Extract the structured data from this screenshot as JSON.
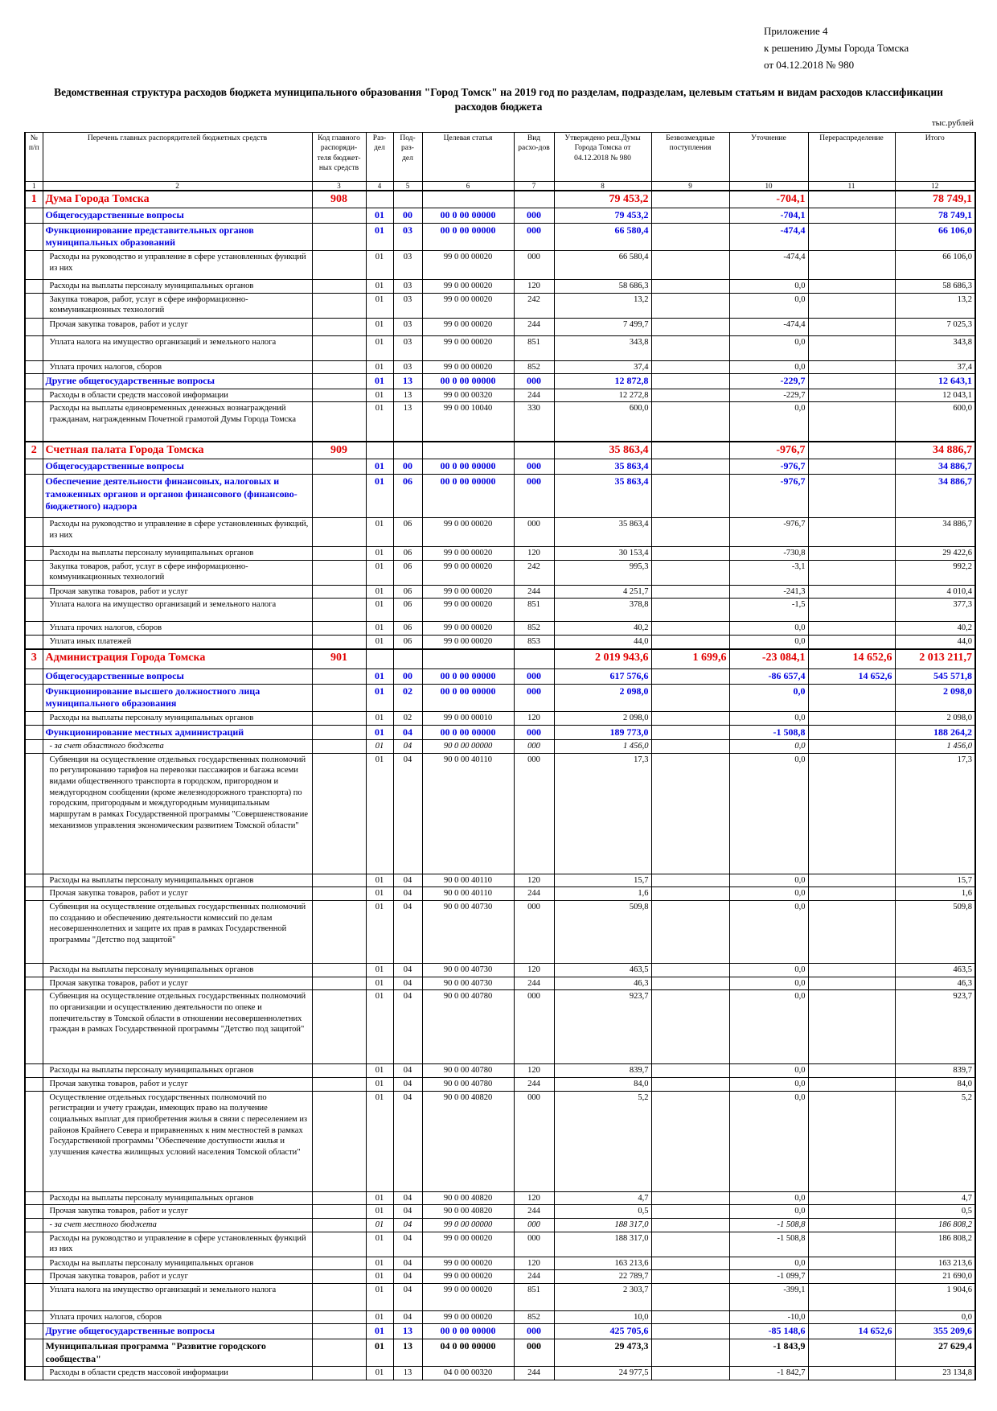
{
  "header": {
    "lines": [
      "Приложение 4",
      "к решению Думы Города Томска",
      "от 04.12.2018 № 980"
    ]
  },
  "title": "Ведомственная структура расходов бюджета муниципального образования \"Город Томск\" на 2019 год по разделам, подразделам, целевым статьям и видам расходов классификации расходов бюджета",
  "unit": "тыс.рублей",
  "table": {
    "columns": [
      "№ п/п",
      "Перечень главных распорядителей бюджетных средств",
      "Код главного распоряди-теля бюджет-ных средств",
      "Раз-дел",
      "Под-раз-дел",
      "Целевая статья",
      "Вид расхо-дов",
      "Утверждено реш.Думы Города Томска от 04.12.2018 № 980",
      "Безвозмездные поступления",
      "Уточнение",
      "Перераспределение",
      "Итого"
    ],
    "column_numbers": [
      1,
      2,
      3,
      4,
      5,
      6,
      7,
      8,
      9,
      10,
      11,
      12
    ],
    "rows": [
      [
        "1",
        "Дума Города Томска",
        "908",
        "",
        "",
        "",
        "",
        "79 453,2",
        "",
        "-704,1",
        "",
        "78 749,1"
      ],
      [
        "",
        "Общегосударственные вопросы",
        "",
        "01",
        "00",
        "00 0 00 00000",
        "000",
        "79 453,2",
        "",
        "-704,1",
        "",
        "78 749,1"
      ],
      [
        "",
        "Функционирование представительных органов муниципальных образований",
        "",
        "01",
        "03",
        "00 0 00 00000",
        "000",
        "66 580,4",
        "",
        "-474,4",
        "",
        "66 106,0"
      ],
      [
        "",
        "Расходы на руководство и управление в сфере установленных функций из них",
        "",
        "01",
        "03",
        "99 0 00 00020",
        "000",
        "66 580,4",
        "",
        "-474,4",
        "",
        "66 106,0"
      ],
      [
        "",
        "Расходы на выплаты персоналу муниципальных органов",
        "",
        "01",
        "03",
        "99 0 00 00020",
        "120",
        "58 686,3",
        "",
        "0,0",
        "",
        "58 686,3"
      ],
      [
        "",
        "Закупка товаров, работ, услуг в сфере информационно-коммуникационных технологий",
        "",
        "01",
        "03",
        "99 0 00 00020",
        "242",
        "13,2",
        "",
        "0,0",
        "",
        "13,2"
      ],
      [
        "",
        "Прочая закупка товаров, работ и услуг",
        "",
        "01",
        "03",
        "99 0 00 00020",
        "244",
        "7 499,7",
        "",
        "-474,4",
        "",
        "7 025,3"
      ],
      [
        "",
        "Уплата налога на имущество организаций и земельного налога",
        "",
        "01",
        "03",
        "99 0 00 00020",
        "851",
        "343,8",
        "",
        "0,0",
        "",
        "343,8"
      ],
      [
        "",
        "Уплата прочих налогов, сборов",
        "",
        "01",
        "03",
        "99 0 00 00020",
        "852",
        "37,4",
        "",
        "0,0",
        "",
        "37,4"
      ],
      [
        "",
        "Другие общегосударственные вопросы",
        "",
        "01",
        "13",
        "00 0 00 00000",
        "000",
        "12 872,8",
        "",
        "-229,7",
        "",
        "12 643,1"
      ],
      [
        "",
        "Расходы в области средств массовой информации",
        "",
        "01",
        "13",
        "99 0 00 00320",
        "244",
        "12 272,8",
        "",
        "-229,7",
        "",
        "12 043,1"
      ],
      [
        "",
        "Расходы на выплаты единовременных денежных вознаграждений гражданам, награжденным Почетной грамотой Думы Города Томска",
        "",
        "01",
        "13",
        "99 0 00 10040",
        "330",
        "600,0",
        "",
        "0,0",
        "",
        "600,0"
      ],
      [
        "2",
        "Счетная палата Города Томска",
        "909",
        "",
        "",
        "",
        "",
        "35 863,4",
        "",
        "-976,7",
        "",
        "34 886,7"
      ],
      [
        "",
        "Общегосударственные вопросы",
        "",
        "01",
        "00",
        "00 0 00 00000",
        "000",
        "35 863,4",
        "",
        "-976,7",
        "",
        "34 886,7"
      ],
      [
        "",
        "Обеспечение деятельности финансовых, налоговых и таможенных органов и органов финансового (финансово-бюджетного) надзора",
        "",
        "01",
        "06",
        "00 0 00 00000",
        "000",
        "35 863,4",
        "",
        "-976,7",
        "",
        "34 886,7"
      ],
      [
        "",
        "Расходы на руководство и управление в сфере установленных функций, из них",
        "",
        "01",
        "06",
        "99 0 00 00020",
        "000",
        "35 863,4",
        "",
        "-976,7",
        "",
        "34 886,7"
      ],
      [
        "",
        "Расходы на выплаты персоналу муниципальных органов",
        "",
        "01",
        "06",
        "99 0 00 00020",
        "120",
        "30 153,4",
        "",
        "-730,8",
        "",
        "29 422,6"
      ],
      [
        "",
        "Закупка товаров, работ, услуг в сфере информационно-коммуникационных технологий",
        "",
        "01",
        "06",
        "99 0 00 00020",
        "242",
        "995,3",
        "",
        "-3,1",
        "",
        "992,2"
      ],
      [
        "",
        "Прочая закупка товаров, работ и услуг",
        "",
        "01",
        "06",
        "99 0 00 00020",
        "244",
        "4 251,7",
        "",
        "-241,3",
        "",
        "4 010,4"
      ],
      [
        "",
        "Уплата налога на имущество организаций и земельного налога",
        "",
        "01",
        "06",
        "99 0 00 00020",
        "851",
        "378,8",
        "",
        "-1,5",
        "",
        "377,3"
      ],
      [
        "",
        "Уплата прочих налогов, сборов",
        "",
        "01",
        "06",
        "99 0 00 00020",
        "852",
        "40,2",
        "",
        "0,0",
        "",
        "40,2"
      ],
      [
        "",
        "Уплата иных платежей",
        "",
        "01",
        "06",
        "99 0 00 00020",
        "853",
        "44,0",
        "",
        "0,0",
        "",
        "44,0"
      ],
      [
        "3",
        "Администрация Города Томска",
        "901",
        "",
        "",
        "",
        "",
        "2 019 943,6",
        "1 699,6",
        "-23 084,1",
        "14 652,6",
        "2 013 211,7"
      ],
      [
        "",
        "Общегосударственные вопросы",
        "",
        "01",
        "00",
        "00 0 00 00000",
        "000",
        "617 576,6",
        "",
        "-86 657,4",
        "14 652,6",
        "545 571,8"
      ],
      [
        "",
        "Функционирование высшего должностного лица муниципального образования",
        "",
        "01",
        "02",
        "00 0 00 00000",
        "000",
        "2 098,0",
        "",
        "0,0",
        "",
        "2 098,0"
      ],
      [
        "",
        "Расходы на выплаты персоналу муниципальных органов",
        "",
        "01",
        "02",
        "99 0 00 00010",
        "120",
        "2 098,0",
        "",
        "0,0",
        "",
        "2 098,0"
      ],
      [
        "",
        "Функционирование местных администраций",
        "",
        "01",
        "04",
        "00 0 00 00000",
        "000",
        "189 773,0",
        "",
        "-1 508,8",
        "",
        "188 264,2"
      ],
      [
        "",
        "- за счет областного бюджета",
        "",
        "01",
        "04",
        "90 0 00 00000",
        "000",
        "1 456,0",
        "",
        "0,0",
        "",
        "1 456,0"
      ],
      [
        "",
        "Субвенция на осуществление отдельных государственных полномочий по регулированию тарифов на перевозки пассажиров и багажа всеми видами общественного транспорта в городском, пригородном и междугородном сообщении (кроме железнодорожного транспорта) по городским, пригородным и междугородным муниципальным маршрутам в рамках Государственной программы \"Совершенствование механизмов управления экономическим развитием Томской области\"",
        "",
        "01",
        "04",
        "90 0 00 40110",
        "000",
        "17,3",
        "",
        "0,0",
        "",
        "17,3"
      ],
      [
        "",
        "Расходы на выплаты персоналу муниципальных органов",
        "",
        "01",
        "04",
        "90 0 00 40110",
        "120",
        "15,7",
        "",
        "0,0",
        "",
        "15,7"
      ],
      [
        "",
        "Прочая закупка товаров, работ и услуг",
        "",
        "01",
        "04",
        "90 0 00 40110",
        "244",
        "1,6",
        "",
        "0,0",
        "",
        "1,6"
      ],
      [
        "",
        "Субвенция на осуществление отдельных государственных полномочий по созданию и обеспечению деятельности комиссий по делам несовершеннолетних и защите их прав в рамках Государственной программы \"Детство под защитой\"",
        "",
        "01",
        "04",
        "90 0 00 40730",
        "000",
        "509,8",
        "",
        "0,0",
        "",
        "509,8"
      ],
      [
        "",
        "Расходы на выплаты персоналу муниципальных органов",
        "",
        "01",
        "04",
        "90 0 00 40730",
        "120",
        "463,5",
        "",
        "0,0",
        "",
        "463,5"
      ],
      [
        "",
        "Прочая закупка товаров, работ и услуг",
        "",
        "01",
        "04",
        "90 0 00 40730",
        "244",
        "46,3",
        "",
        "0,0",
        "",
        "46,3"
      ],
      [
        "",
        "Субвенция на осуществление отдельных государственных полномочий по организации и осуществлению деятельности по опеке и попечительству в Томской области в отношении несовершеннолетних граждан в рамках Государственной программы \"Детство под защитой\"",
        "",
        "01",
        "04",
        "90 0 00 40780",
        "000",
        "923,7",
        "",
        "0,0",
        "",
        "923,7"
      ],
      [
        "",
        "Расходы на выплаты персоналу муниципальных органов",
        "",
        "01",
        "04",
        "90 0 00 40780",
        "120",
        "839,7",
        "",
        "0,0",
        "",
        "839,7"
      ],
      [
        "",
        "Прочая закупка товаров, работ и услуг",
        "",
        "01",
        "04",
        "90 0 00 40780",
        "244",
        "84,0",
        "",
        "0,0",
        "",
        "84,0"
      ],
      [
        "",
        "Осуществление отдельных государственных полномочий по регистрации и учету граждан, имеющих право на получение социальных выплат для приобретения жилья в связи с переселением из районов Крайнего Севера и приравненных к ним местностей в рамках Государственной программы \"Обеспечение доступности жилья и улучшения качества жилищных условий населения Томской области\"",
        "",
        "01",
        "04",
        "90 0 00 40820",
        "000",
        "5,2",
        "",
        "0,0",
        "",
        "5,2"
      ],
      [
        "",
        "Расходы на выплаты персоналу муниципальных органов",
        "",
        "01",
        "04",
        "90 0 00 40820",
        "120",
        "4,7",
        "",
        "0,0",
        "",
        "4,7"
      ],
      [
        "",
        "Прочая закупка товаров, работ и услуг",
        "",
        "01",
        "04",
        "90 0 00 40820",
        "244",
        "0,5",
        "",
        "0,0",
        "",
        "0,5"
      ],
      [
        "",
        "- за счет местного бюджета",
        "",
        "01",
        "04",
        "99 0 00 00000",
        "000",
        "188 317,0",
        "",
        "-1 508,8",
        "",
        "186 808,2"
      ],
      [
        "",
        "Расходы на руководство и управление в сфере установленных функций из них",
        "",
        "01",
        "04",
        "99 0 00 00020",
        "000",
        "188 317,0",
        "",
        "-1 508,8",
        "",
        "186 808,2"
      ],
      [
        "",
        "Расходы на выплаты персоналу муниципальных органов",
        "",
        "01",
        "04",
        "99 0 00 00020",
        "120",
        "163 213,6",
        "",
        "0,0",
        "",
        "163 213,6"
      ],
      [
        "",
        "Прочая закупка товаров, работ и услуг",
        "",
        "01",
        "04",
        "99 0 00 00020",
        "244",
        "22 789,7",
        "",
        "-1 099,7",
        "",
        "21 690,0"
      ],
      [
        "",
        "Уплата налога на имущество организаций и земельного налога",
        "",
        "01",
        "04",
        "99 0 00 00020",
        "851",
        "2 303,7",
        "",
        "-399,1",
        "",
        "1 904,6"
      ],
      [
        "",
        "Уплата прочих налогов, сборов",
        "",
        "01",
        "04",
        "99 0 00 00020",
        "852",
        "10,0",
        "",
        "-10,0",
        "",
        "0,0"
      ],
      [
        "",
        "Другие общегосударственные вопросы",
        "",
        "01",
        "13",
        "00 0 00 00000",
        "000",
        "425 705,6",
        "",
        "-85 148,6",
        "14 652,6",
        "355 209,6"
      ],
      [
        "",
        "Муниципальная программа \"Развитие городского сообщества\"",
        "",
        "01",
        "13",
        "04 0 00 00000",
        "000",
        "29 473,3",
        "",
        "-1 843,9",
        "",
        "27 629,4"
      ],
      [
        "",
        "Расходы в области средств массовой информации",
        "",
        "01",
        "13",
        "04 0 00 00320",
        "244",
        "24 977,5",
        "",
        "-1 842,7",
        "",
        "23 134,8"
      ]
    ]
  }
}
